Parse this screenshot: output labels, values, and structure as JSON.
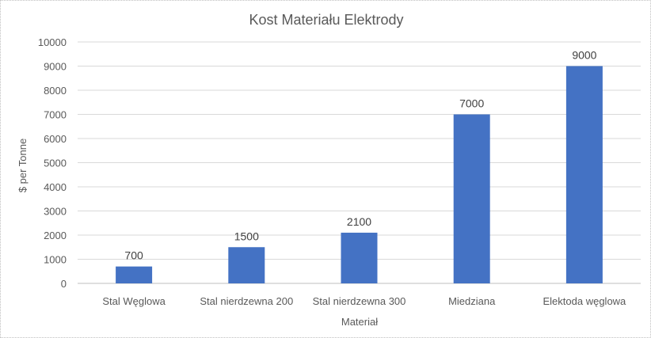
{
  "chart_data": {
    "type": "bar",
    "title": "Kost Materiału Elektrody",
    "xlabel": "Materiał",
    "ylabel": "$ per Tonne",
    "categories": [
      "Stal Węglowa",
      "Stal nierdzewna 200",
      "Stal nierdzewna 300",
      "Miedziana",
      "Elektoda węglowa"
    ],
    "values": [
      700,
      1500,
      2100,
      7000,
      9000
    ],
    "data_labels": [
      "700",
      "1500",
      "2100",
      "7000",
      "9000"
    ],
    "y_ticks": [
      "0",
      "1000",
      "2000",
      "3000",
      "4000",
      "5000",
      "6000",
      "7000",
      "8000",
      "9000",
      "10000"
    ],
    "ylim": [
      0,
      10000
    ],
    "grid": true,
    "legend": "none",
    "bar_color": "#4472c4",
    "grid_color": "#d9d9d9"
  }
}
